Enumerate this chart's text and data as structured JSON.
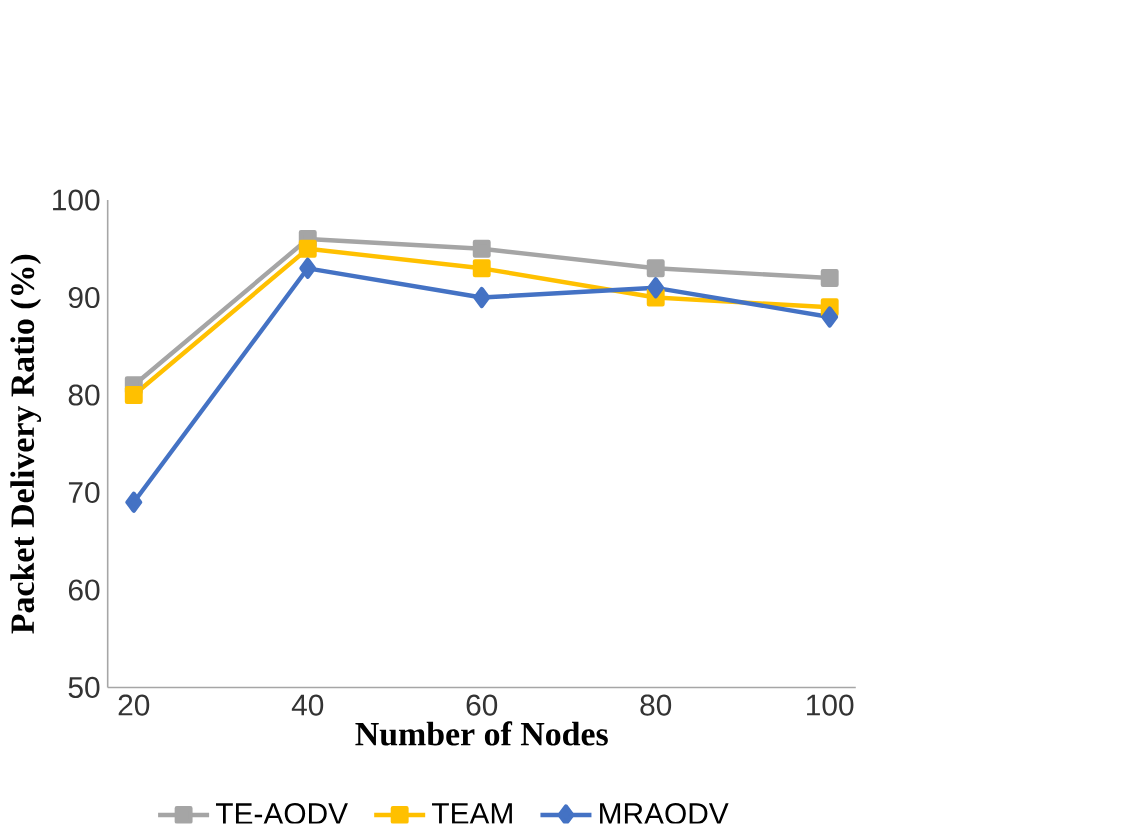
{
  "chart_data": {
    "type": "line",
    "xlabel": "Number of Nodes",
    "ylabel": "Packet Delivery Ratio (%)",
    "categories": [
      "20",
      "40",
      "60",
      "80",
      "100"
    ],
    "series": [
      {
        "name": "TE-AODV",
        "color": "#a5a5a5",
        "marker": "square",
        "values": [
          81,
          96,
          95,
          93,
          92
        ]
      },
      {
        "name": "TEAM",
        "color": "#ffc000",
        "marker": "square",
        "values": [
          80,
          95,
          93,
          90,
          89
        ]
      },
      {
        "name": "MRAODV",
        "color": "#4472c4",
        "marker": "diamond",
        "values": [
          69,
          93,
          90,
          91,
          88
        ]
      }
    ],
    "ylim": [
      50,
      100
    ],
    "yticks": [
      50,
      60,
      70,
      80,
      90,
      100
    ],
    "grid": false,
    "legend": "bottom"
  }
}
